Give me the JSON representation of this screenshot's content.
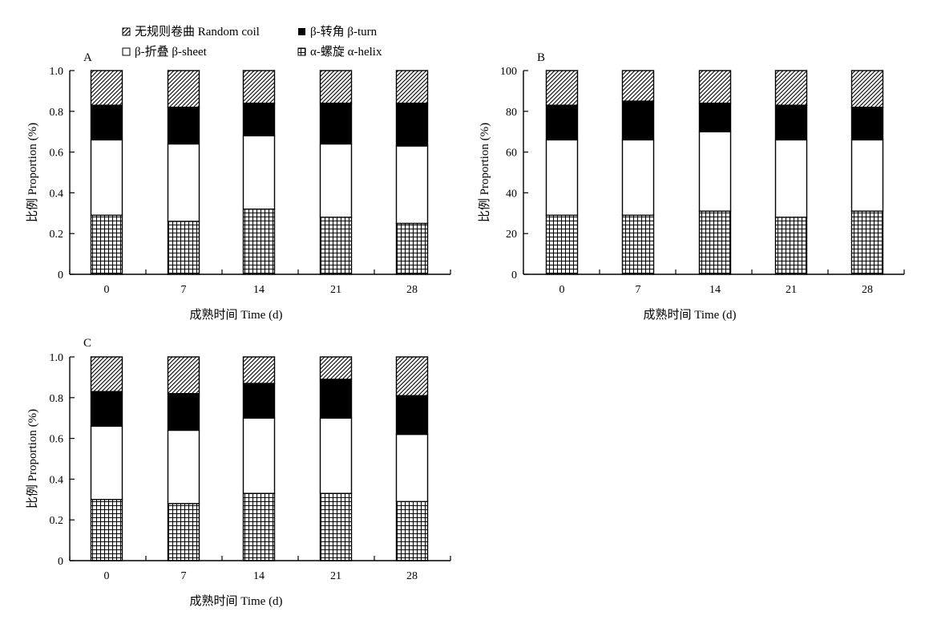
{
  "legend": [
    {
      "key": "random_coil",
      "label": "无规则卷曲 Random  coil",
      "pattern": "hatch"
    },
    {
      "key": "beta_turn",
      "label": "β-转角 β-turn",
      "pattern": "solid"
    },
    {
      "key": "beta_sheet",
      "label": "β-折叠 β-sheet",
      "pattern": "white"
    },
    {
      "key": "alpha_helix",
      "label": "α-螺旋 α-helix",
      "pattern": "grid"
    }
  ],
  "colors": {
    "turn_fill": "#000000",
    "sheet_fill": "#ffffff",
    "stroke": "#000000"
  },
  "chart_data": [
    {
      "type": "bar",
      "stacked": true,
      "panel_label": "A",
      "xlabel": "成熟时间 Time (d)",
      "ylabel": "比例 Proportion (%)",
      "ylim": [
        0,
        1.0
      ],
      "yticks": [
        "0",
        "0.2",
        "0.4",
        "0.6",
        "0.8",
        "1.0"
      ],
      "categories": [
        "0",
        "7",
        "14",
        "21",
        "28"
      ],
      "series": [
        {
          "name": "α-螺旋 α-helix",
          "values": [
            0.29,
            0.26,
            0.32,
            0.28,
            0.25
          ]
        },
        {
          "name": "β-折叠 β-sheet",
          "values": [
            0.37,
            0.38,
            0.36,
            0.36,
            0.38
          ]
        },
        {
          "name": "β-转角 β-turn",
          "values": [
            0.17,
            0.18,
            0.16,
            0.2,
            0.21
          ]
        },
        {
          "name": "无规则卷曲 Random coil",
          "values": [
            0.17,
            0.18,
            0.16,
            0.16,
            0.16
          ]
        }
      ]
    },
    {
      "type": "bar",
      "stacked": true,
      "panel_label": "B",
      "xlabel": "成熟时间 Time (d)",
      "ylabel": "比例 Proportion (%)",
      "ylim": [
        0,
        100
      ],
      "yticks": [
        "0",
        "20",
        "40",
        "60",
        "80",
        "100"
      ],
      "categories": [
        "0",
        "7",
        "14",
        "21",
        "28"
      ],
      "series": [
        {
          "name": "α-螺旋 α-helix",
          "values": [
            29,
            29,
            31,
            28,
            31
          ]
        },
        {
          "name": "β-折叠 β-sheet",
          "values": [
            37,
            37,
            39,
            38,
            35
          ]
        },
        {
          "name": "β-转角 β-turn",
          "values": [
            17,
            19,
            14,
            17,
            16
          ]
        },
        {
          "name": "无规则卷曲 Random coil",
          "values": [
            17,
            15,
            16,
            17,
            18
          ]
        }
      ]
    },
    {
      "type": "bar",
      "stacked": true,
      "panel_label": "C",
      "xlabel": "成熟时间 Time (d)",
      "ylabel": "比例 Proportion (%)",
      "ylim": [
        0,
        1.0
      ],
      "yticks": [
        "0",
        "0.2",
        "0.4",
        "0.6",
        "0.8",
        "1.0"
      ],
      "categories": [
        "0",
        "7",
        "14",
        "21",
        "28"
      ],
      "series": [
        {
          "name": "α-螺旋 α-helix",
          "values": [
            0.3,
            0.28,
            0.33,
            0.33,
            0.29
          ]
        },
        {
          "name": "β-折叠 β-sheet",
          "values": [
            0.36,
            0.36,
            0.37,
            0.37,
            0.33
          ]
        },
        {
          "name": "β-转角 β-turn",
          "values": [
            0.17,
            0.18,
            0.17,
            0.19,
            0.19
          ]
        },
        {
          "name": "无规则卷曲 Random coil",
          "values": [
            0.17,
            0.18,
            0.13,
            0.11,
            0.19
          ]
        }
      ]
    }
  ]
}
